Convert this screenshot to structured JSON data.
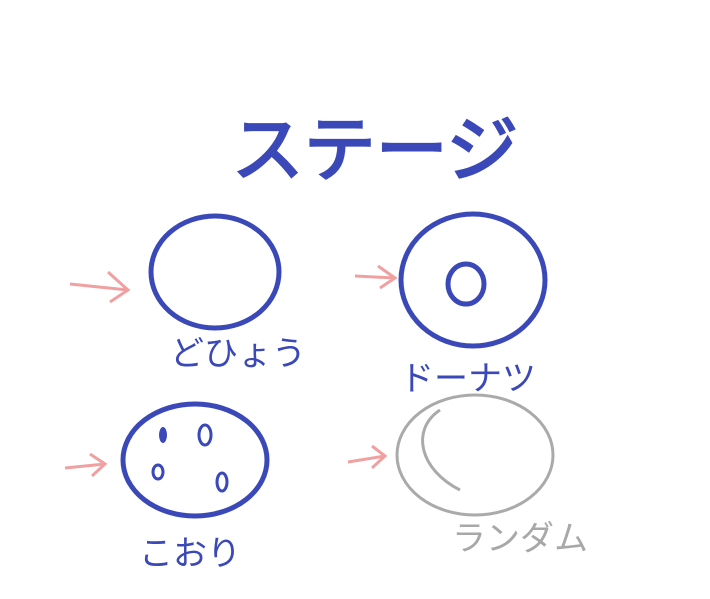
{
  "title": "ステージ",
  "stages": [
    {
      "label": "どひょう"
    },
    {
      "label": "ドーナツ"
    },
    {
      "label": "こおり"
    },
    {
      "label": "ランダム"
    }
  ]
}
